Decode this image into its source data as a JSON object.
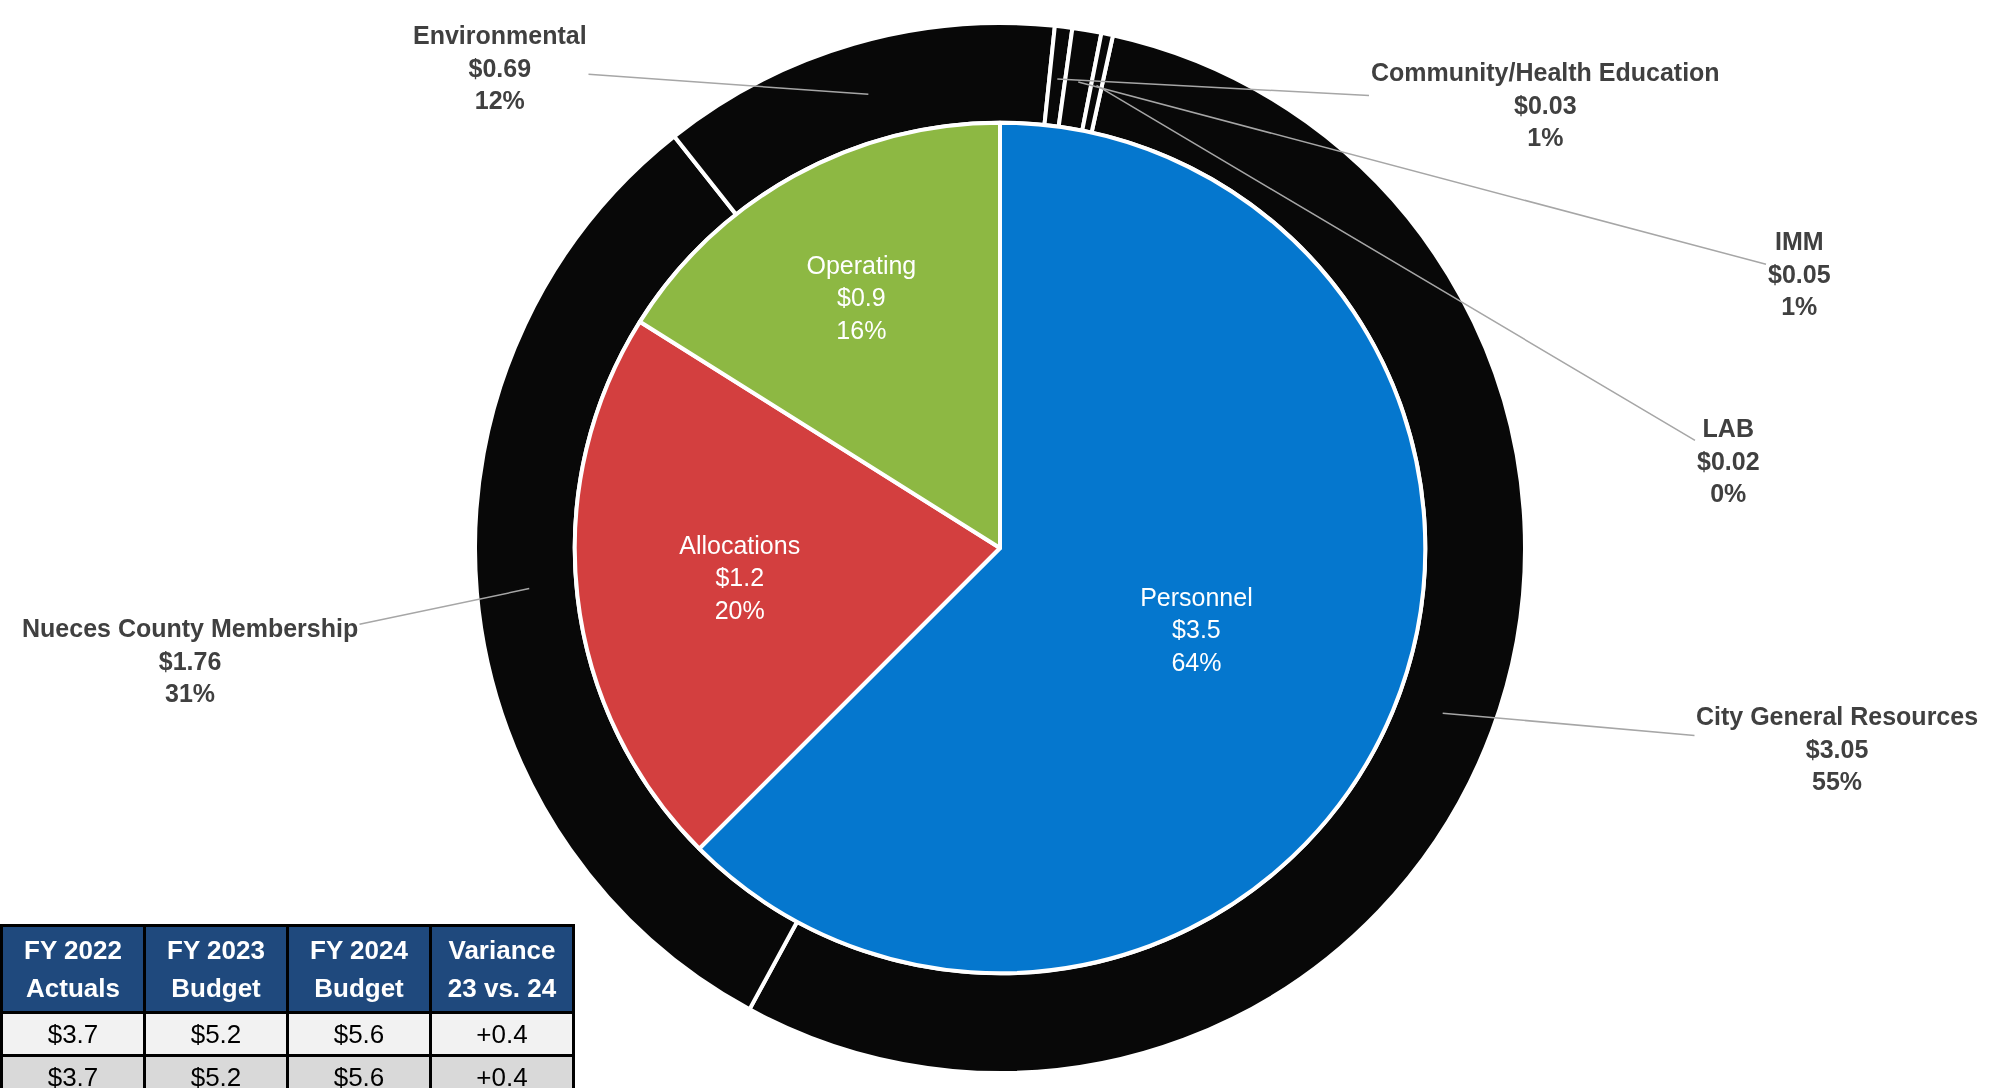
{
  "chart_data": [
    {
      "type": "pie",
      "categories": [
        "Personnel",
        "Allocations",
        "Operating"
      ],
      "values": [
        3.5,
        1.2,
        0.9
      ],
      "value_labels": [
        "$3.5\n64%",
        "$1.2\n20%",
        "$0.9\n16%"
      ],
      "colors": [
        "#0577ce",
        "#d33f3f",
        "#8db843"
      ]
    },
    {
      "type": "donut",
      "categories": [
        "City General Resources",
        "Nueces County Membership",
        "Environmental",
        "Community/Health Education",
        "IMM",
        "LAB"
      ],
      "values": [
        3.05,
        1.76,
        0.69,
        0.03,
        0.05,
        0.02
      ],
      "value_labels": [
        "$3.05\n55%",
        "$1.76\n31%",
        "$0.69\n12%",
        "$0.03\n1%",
        "$0.05\n1%",
        "$0.02\n0%"
      ],
      "colors": [
        "#080808",
        "#080808",
        "#080808",
        "#080808",
        "#080808",
        "#080808"
      ]
    },
    {
      "type": "other",
      "annotations": [
        "FY 2022\nActuals",
        "FY 2023\nBudget",
        "FY 2024\nBudget",
        "Variance\n23 vs. 24",
        "$3.7",
        "$5.2",
        "$5.6",
        "+0.4",
        "$3.7",
        "$5.2",
        "$5.6",
        "+0.4"
      ]
    }
  ]
}
